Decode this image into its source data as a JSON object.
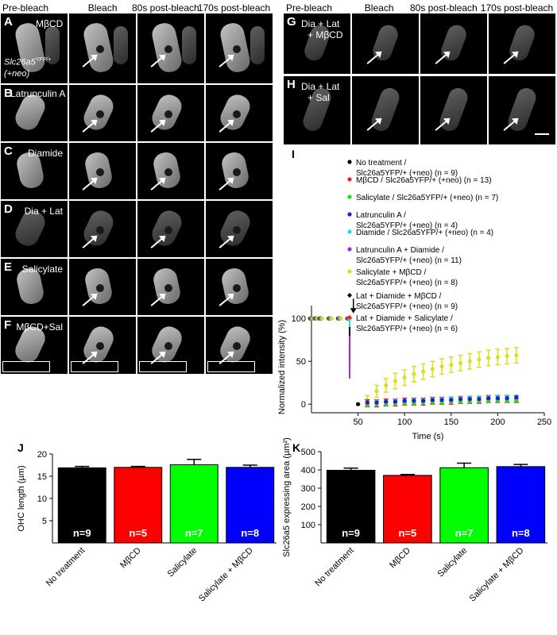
{
  "left_panel": {
    "columns": [
      "Pre-bleach",
      "Bleach",
      "80s post-bleach",
      "170s post-bleach"
    ],
    "rows": [
      {
        "letter": "A",
        "label": "MβCD",
        "genotype_line1": "Slc26a5",
        "genotype_sup": "YFP/+",
        "genotype_line2": "(+neo)"
      },
      {
        "letter": "B",
        "label": "Latrunculin A"
      },
      {
        "letter": "C",
        "label": "Diamide"
      },
      {
        "letter": "D",
        "label": "Dia + Lat"
      },
      {
        "letter": "E",
        "label": "Salicylate"
      },
      {
        "letter": "F",
        "label": "MβCD+Sal"
      }
    ]
  },
  "right_panel": {
    "columns": [
      "Pre-bleach",
      "Bleach",
      "80s post-bleach",
      "170s post-bleach"
    ],
    "rows": [
      {
        "letter": "G",
        "label_lines": [
          "Dia + Lat",
          "+ MβCD"
        ]
      },
      {
        "letter": "H",
        "label_lines": [
          "Dia + Lat",
          "+ Sal"
        ]
      }
    ]
  },
  "panel_I": {
    "letter": "I",
    "legend": [
      {
        "text": "No treatment / Slc26a5YFP/+ (+neo) (n = 9)",
        "color": "#000000",
        "marker": "circle"
      },
      {
        "text": "MβCD / Slc26a5YFP/+ (+neo) (n = 13)",
        "color": "#e8202a",
        "marker": "circle"
      },
      {
        "text": "Salicylate / Slc26a5YFP/+ (+neo) (n = 7)",
        "color": "#22dd22",
        "marker": "circle"
      },
      {
        "text": "Latrunculin A / Slc26a5YFP/+ (+neo) (n = 4)",
        "color": "#1a22cc",
        "marker": "circle"
      },
      {
        "text": "Diamide / Slc26a5YFP/+ (+neo) (n = 4)",
        "color": "#22dddd",
        "marker": "circle"
      },
      {
        "text": "Latrunculin A + Diamide / Slc26a5YFP/+ (+neo) (n = 11)",
        "color": "#9a33cc",
        "marker": "circle"
      },
      {
        "text": "Salicylate + MβCD / Slc26a5YFP/+ (+neo) (n = 8)",
        "color": "#dddd22",
        "marker": "circle"
      },
      {
        "text": "Lat + Diamide + MβCD / Slc26a5YFP/+ (+neo) (n = 9)",
        "color": "#000000",
        "marker": "diamond"
      },
      {
        "text": "Lat + Diamide + Salicylate / Slc26a5YFP/+ (+neo) (n = 6)",
        "color": "#e8202a",
        "marker": "diamond"
      }
    ]
  },
  "chart_data": [
    {
      "panel": "I",
      "type": "scatter",
      "xlabel": "Time (s)",
      "ylabel": "Normalized intensity (%)",
      "xlim": [
        0,
        250
      ],
      "ylim": [
        -10,
        115
      ],
      "x_ticks": [
        50,
        100,
        150,
        200,
        250
      ],
      "y_ticks": [
        0,
        50,
        100
      ],
      "annotation": "bleach arrow at ~45 s",
      "prebleach_x": [
        0,
        5,
        10,
        20,
        30,
        40
      ],
      "prebleach_y": [
        100,
        100,
        100,
        100,
        100,
        100
      ],
      "series": [
        {
          "name": "Salicylate + MβCD / Slc26a5YFP/+ (+neo) (n = 8)",
          "color": "#dddd22",
          "x": [
            60,
            70,
            80,
            90,
            100,
            110,
            120,
            130,
            140,
            150,
            160,
            170,
            180,
            190,
            200,
            210,
            220
          ],
          "y": [
            5,
            15,
            22,
            27,
            31,
            35,
            38,
            41,
            44,
            46,
            48,
            50,
            52,
            54,
            55,
            56,
            57
          ],
          "err": [
            5,
            7,
            8,
            9,
            9,
            9,
            9,
            9,
            9,
            9,
            9,
            9,
            9,
            9,
            9,
            9,
            9
          ]
        },
        {
          "name": "No treatment / Slc26a5YFP/+ (+neo) (n = 9)",
          "color": "#000000",
          "x": [
            50,
            60,
            70,
            80,
            90,
            100,
            110,
            120,
            130,
            140,
            150,
            160,
            170,
            180,
            190,
            200,
            210,
            220
          ],
          "y": [
            0,
            2,
            2,
            3,
            3,
            3,
            4,
            4,
            4,
            5,
            5,
            5,
            6,
            6,
            6,
            6,
            7,
            7
          ]
        },
        {
          "name": "MβCD / Slc26a5YFP/+ (+neo) (n = 13)",
          "color": "#e8202a",
          "x": [
            60,
            70,
            80,
            90,
            100,
            110,
            120,
            130,
            140,
            150,
            160,
            170,
            180,
            190,
            200,
            210,
            220
          ],
          "y": [
            1,
            1,
            2,
            2,
            3,
            3,
            3,
            4,
            4,
            4,
            5,
            5,
            5,
            6,
            6,
            6,
            6
          ],
          "err": [
            4,
            4,
            4,
            4,
            4,
            4,
            4,
            4,
            4,
            4,
            4,
            4,
            4,
            4,
            4,
            4,
            4
          ]
        },
        {
          "name": "Salicylate / Slc26a5YFP/+ (+neo) (n = 7)",
          "color": "#22dd22",
          "x": [
            60,
            70,
            80,
            90,
            100,
            110,
            120,
            130,
            140,
            150,
            160,
            170,
            180,
            190,
            200,
            210,
            220
          ],
          "y": [
            -1,
            0,
            0,
            1,
            1,
            1,
            2,
            2,
            2,
            3,
            3,
            3,
            3,
            4,
            4,
            4,
            4
          ]
        },
        {
          "name": "Diamide / Slc26a5YFP/+ (+neo) (n = 4)",
          "color": "#22dddd",
          "x": [
            60,
            70,
            80,
            90,
            100,
            110,
            120,
            130,
            140,
            150,
            160,
            170,
            180,
            190,
            200,
            210,
            220
          ],
          "y": [
            2,
            3,
            3,
            4,
            4,
            5,
            5,
            6,
            6,
            7,
            7,
            8,
            8,
            8,
            9,
            9,
            9
          ]
        },
        {
          "name": "Latrunculin A / Slc26a5YFP/+ (+neo) (n = 4)",
          "color": "#1a22cc",
          "x": [
            60,
            70,
            80,
            90,
            100,
            110,
            120,
            130,
            140,
            150,
            160,
            170,
            180,
            190,
            200,
            210,
            220
          ],
          "y": [
            2,
            2,
            3,
            3,
            4,
            4,
            4,
            5,
            5,
            5,
            6,
            6,
            6,
            7,
            7,
            7,
            8
          ]
        }
      ]
    },
    {
      "panel": "J",
      "type": "bar",
      "categories": [
        "No treatment",
        "MβCD",
        "Salicylate",
        "Salicylate + MβCD"
      ],
      "values": [
        16.9,
        17.0,
        17.6,
        17.0
      ],
      "errors": [
        0.3,
        0.2,
        1.2,
        0.5
      ],
      "n_labels": [
        "n=9",
        "n=5",
        "n=7",
        "n=8"
      ],
      "colors": [
        "#000000",
        "#ff0000",
        "#00ff00",
        "#0000ff"
      ],
      "ylabel": "OHC length (µm)",
      "ylim": [
        0,
        20
      ],
      "y_ticks": [
        5,
        10,
        15,
        20
      ]
    },
    {
      "panel": "K",
      "type": "bar",
      "categories": [
        "No treatment",
        "MβCD",
        "Salicylate",
        "Salicylate + MβCD"
      ],
      "values": [
        398,
        370,
        412,
        418
      ],
      "errors": [
        12,
        5,
        25,
        12
      ],
      "n_labels": [
        "n=9",
        "n=5",
        "n=7",
        "n=8"
      ],
      "colors": [
        "#000000",
        "#ff0000",
        "#00ff00",
        "#0000ff"
      ],
      "ylabel": "Slc26a5 expressing area (µm²)",
      "ylim": [
        0,
        500
      ],
      "y_ticks": [
        100,
        200,
        300,
        400,
        500
      ]
    }
  ],
  "panel_letters": {
    "J": "J",
    "K": "K"
  }
}
